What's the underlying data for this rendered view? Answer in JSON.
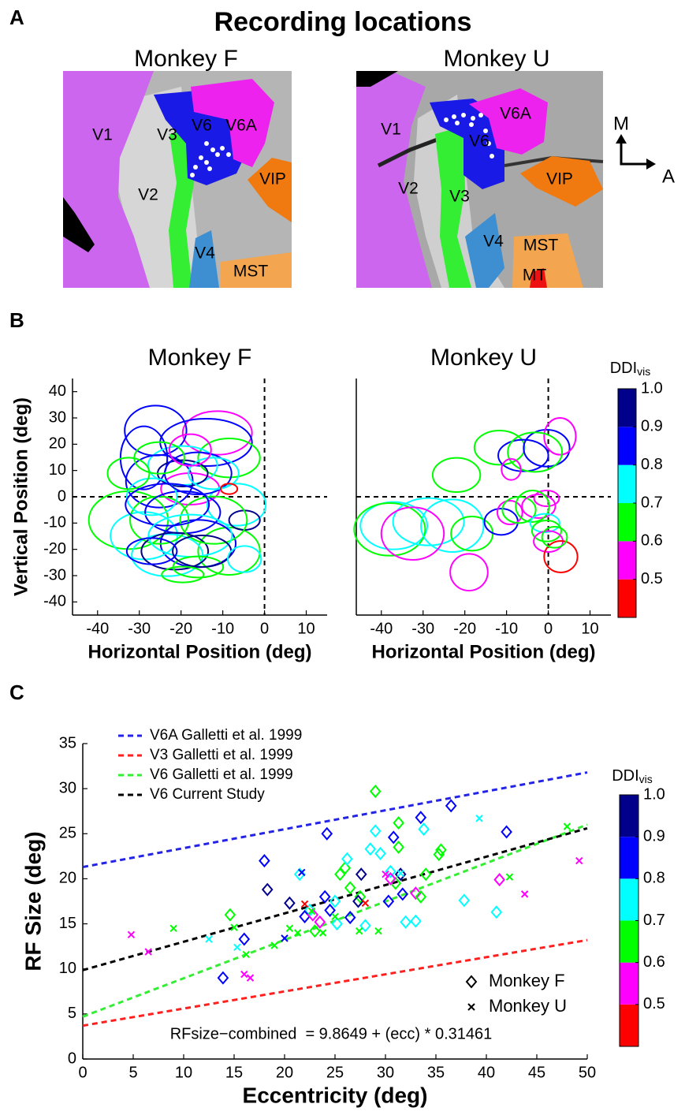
{
  "figure": {
    "panel_labels": [
      "A",
      "B",
      "C"
    ],
    "panel_a": {
      "title": "Recording locations",
      "maps": [
        {
          "title": "Monkey F",
          "areas": [
            "V1",
            "V3",
            "V6",
            "V6A",
            "V2",
            "VIP",
            "V4",
            "MST"
          ]
        },
        {
          "title": "Monkey U",
          "areas": [
            "V1",
            "V6A",
            "V6",
            "V2",
            "V3",
            "VIP",
            "V4",
            "MST",
            "MT"
          ]
        }
      ],
      "compass": [
        "M",
        "A"
      ]
    }
  },
  "chart_data": [
    {
      "type": "ellipse",
      "title": "Monkey F",
      "xlabel": "Horizontal Position (deg)",
      "ylabel": "Vertical Position (deg)",
      "xlim": [
        -46,
        15
      ],
      "ylim": [
        -45,
        45
      ],
      "xticks": [
        -40,
        -30,
        -20,
        -10,
        0,
        10
      ],
      "yticks": [
        -40,
        -30,
        -20,
        -10,
        0,
        10,
        20,
        30,
        40
      ],
      "zero_lines": true,
      "x": [
        -11.3,
        -26.1,
        -14,
        -8.5,
        -19.6,
        -28.9,
        -25.2,
        -17.8,
        -19.6,
        -32.6,
        -8.5,
        -23.3,
        -15.9,
        -28.9,
        -25.2,
        -6.7,
        -4.8,
        -19.6,
        -21.5,
        -12.2,
        -27,
        -15.9,
        -25.2,
        -12.2,
        -23.3,
        -17.8,
        -15.9,
        -15,
        -17.8,
        -32.6,
        -8.5,
        -4.8,
        -27,
        -19.6
      ],
      "y": [
        24.3,
        25.2,
        20.7,
        14.8,
        11.9,
        14.8,
        5.9,
        3,
        8.9,
        -8.9,
        -20.7,
        -22.2,
        -17.8,
        -14.8,
        -8.9,
        -3,
        -8.9,
        -5.9,
        -20.7,
        -8.9,
        0,
        8.9,
        14.8,
        8.9,
        -3,
        -14.8,
        -26.7,
        -20.7,
        17.8,
        8.9,
        3,
        -23.7,
        -20.7,
        -29.6
      ],
      "rx": [
        8.3,
        7.4,
        11,
        7.4,
        8.3,
        5.6,
        8,
        7,
        6,
        9.5,
        7.4,
        8.5,
        9,
        8,
        7,
        7,
        3.7,
        9,
        8,
        8,
        6,
        8,
        6,
        6,
        10,
        10,
        6,
        7,
        5,
        5,
        2,
        4,
        6,
        5
      ],
      "ry": [
        8.3,
        9.5,
        9,
        7.4,
        7.4,
        12,
        10,
        6,
        5,
        11,
        9,
        8,
        9,
        9,
        9,
        8,
        3.7,
        8,
        7,
        9,
        7,
        8,
        6,
        6,
        8,
        8,
        4,
        6,
        6,
        6,
        2,
        5,
        5,
        3
      ],
      "ddi": [
        0.55,
        0.85,
        0.85,
        0.65,
        0.75,
        0.85,
        0.85,
        0.55,
        0.95,
        0.65,
        0.65,
        0.75,
        0.85,
        0.75,
        0.65,
        0.75,
        0.95,
        0.85,
        0.95,
        0.65,
        0.75,
        0.85,
        0.65,
        0.75,
        0.85,
        0.75,
        0.65,
        0.95,
        0.55,
        0.65,
        0.45,
        0.75,
        0.85,
        0.65
      ]
    },
    {
      "type": "ellipse",
      "title": "Monkey U",
      "xlabel": "Horizontal Position (deg)",
      "xlim": [
        -46,
        15
      ],
      "ylim": [
        -45,
        45
      ],
      "xticks": [
        -40,
        -30,
        -20,
        -10,
        0,
        10
      ],
      "zero_lines": true,
      "x": [
        -22,
        -11.7,
        -6,
        -0.4,
        2.8,
        -3.2,
        -8.9,
        -37,
        -38,
        -28.7,
        -23,
        -32.5,
        -18.3,
        -19,
        -11.3,
        -9.2,
        -7,
        -2.3,
        -0.4,
        -3.8,
        -0.8,
        -0.4,
        0,
        3,
        1.5
      ],
      "y": [
        8.3,
        18.7,
        15.7,
        18.5,
        23,
        17,
        10.4,
        -11,
        -12.4,
        -9.5,
        -11,
        -14,
        -14,
        -28.7,
        -9.5,
        -6,
        -5,
        -3.6,
        -0.6,
        -3.6,
        -10,
        -13,
        -17,
        -22.8,
        -15.4
      ],
      "rx": [
        5.7,
        6,
        6,
        5.5,
        3.8,
        6.5,
        2.3,
        8,
        8.5,
        8.5,
        7.5,
        7.5,
        5,
        4.5,
        4,
        3,
        4,
        4,
        3,
        4,
        3.5,
        3.5,
        3.5,
        4,
        3
      ],
      "ry": [
        6.5,
        6.5,
        6,
        7,
        7,
        7.5,
        4,
        9,
        10,
        9,
        10,
        10,
        6.5,
        7,
        5,
        4.5,
        5,
        4.5,
        3,
        6,
        3.5,
        4,
        4,
        6,
        4
      ],
      "ddi": [
        0.65,
        0.65,
        0.85,
        0.85,
        0.55,
        0.65,
        0.55,
        0.75,
        0.65,
        0.75,
        0.75,
        0.55,
        0.65,
        0.55,
        0.85,
        0.55,
        0.65,
        0.55,
        0.55,
        0.65,
        0.75,
        0.65,
        0.55,
        0.45,
        0.65
      ],
      "colorbar": {
        "title": "DDI",
        "title_sub": "vis",
        "lim": [
          0.4,
          1.0
        ],
        "ticks": [
          0.5,
          0.6,
          0.7,
          0.8,
          0.9,
          {
            "value": 1,
            "label": "1.0"
          }
        ],
        "colors": [
          "#ff0000",
          "#ff00ff",
          "#00ff00",
          "#00ffff",
          "#0000ff",
          "#00008b"
        ]
      }
    },
    {
      "type": "scatter",
      "xlabel": "Eccentricity (deg)",
      "ylabel": "RF Size (deg)",
      "xlim": [
        0,
        50
      ],
      "ylim": [
        0,
        35
      ],
      "xticks": [
        0,
        5,
        10,
        15,
        20,
        25,
        30,
        35,
        40,
        45,
        50
      ],
      "yticks": [
        0,
        5,
        10,
        15,
        20,
        25,
        30,
        35
      ],
      "lines": [
        {
          "name": "V6A Galletti et al. 1999",
          "color": "#2424e8",
          "x": [
            0,
            50
          ],
          "y": [
            21.3,
            31.8
          ]
        },
        {
          "name": "V3 Galletti et al. 1999",
          "color": "#ff2020",
          "x": [
            0,
            50
          ],
          "y": [
            3.7,
            13.2
          ]
        },
        {
          "name": "V6 Galletti et al. 1999",
          "color": "#33ee33",
          "x": [
            0,
            50
          ],
          "y": [
            4.7,
            26
          ]
        },
        {
          "name": "V6 Current Study",
          "color": "#000000",
          "x": [
            0,
            50
          ],
          "y": [
            9.86,
            25.6
          ]
        }
      ],
      "series": [
        {
          "name": "Monkey F",
          "marker": "diamond",
          "x": [
            13.9,
            16,
            14.6,
            18,
            18.3,
            20.5,
            21.5,
            22.5,
            22,
            23,
            23.5,
            24,
            24.2,
            24.5,
            25,
            25.2,
            25.5,
            26,
            26.2,
            26.5,
            26.5,
            27.5,
            27.6,
            28,
            27.3,
            28.5,
            29,
            29,
            29.5,
            30.3,
            30.5,
            30.8,
            31,
            31.3,
            31.5,
            31.7,
            31.3,
            32,
            33,
            33.5,
            33.8,
            34,
            33,
            33.5,
            35.5,
            35.3,
            36.5,
            37.8,
            41,
            41.3,
            42,
            30.5,
            22.8
          ],
          "y": [
            9,
            13.3,
            16,
            22,
            18.8,
            17.3,
            20.5,
            16.5,
            15.8,
            14.2,
            15.2,
            18,
            25,
            16.5,
            17.5,
            15,
            20.5,
            21.2,
            22.2,
            19,
            15.7,
            18,
            20.5,
            14.8,
            17.5,
            23.3,
            29.7,
            25.3,
            22.8,
            17.5,
            20.8,
            24.6,
            19.5,
            23.5,
            20.5,
            18.3,
            26.2,
            15.2,
            15.3,
            26.8,
            25.5,
            20.5,
            18.4,
            18,
            23.2,
            22.7,
            28.1,
            17.6,
            16.3,
            19.9,
            25.2,
            20,
            16
          ],
          "ddi": [
            0.85,
            0.85,
            0.65,
            0.85,
            0.95,
            0.95,
            0.75,
            0.75,
            0.85,
            0.65,
            0.55,
            0.85,
            0.85,
            0.85,
            0.75,
            0.75,
            0.65,
            0.65,
            0.75,
            0.65,
            0.85,
            0.65,
            0.95,
            0.75,
            0.95,
            0.75,
            0.65,
            0.75,
            0.75,
            0.85,
            0.75,
            0.85,
            0.65,
            0.65,
            0.95,
            0.85,
            0.65,
            0.75,
            0.75,
            0.85,
            0.75,
            0.65,
            0.55,
            0.65,
            0.65,
            0.65,
            0.85,
            0.75,
            0.75,
            0.55,
            0.85,
            0.55,
            0.55
          ]
        },
        {
          "name": "Monkey U",
          "marker": "cross",
          "x": [
            4.8,
            6.5,
            9,
            12.5,
            15,
            15.3,
            16,
            16.6,
            16.2,
            19,
            20,
            20.5,
            21.3,
            21.7,
            22,
            22.7,
            23.8,
            25,
            27.4,
            28,
            29.3,
            30,
            31.5,
            39.3,
            42.3,
            43.8,
            48,
            49.2
          ],
          "y": [
            13.8,
            11.9,
            14.5,
            13.3,
            14.6,
            12.4,
            9.4,
            9,
            11.6,
            12.6,
            13.4,
            14.5,
            14,
            20.7,
            17.2,
            16.4,
            14,
            15.8,
            14.2,
            17.3,
            14.2,
            20.5,
            20.6,
            26.7,
            20.2,
            18.3,
            25.8,
            22
          ],
          "ddi": [
            0.55,
            0.55,
            0.65,
            0.75,
            0.65,
            0.75,
            0.55,
            0.55,
            0.65,
            0.65,
            0.85,
            0.65,
            0.65,
            0.85,
            0.45,
            0.65,
            0.65,
            0.65,
            0.65,
            0.45,
            0.65,
            0.55,
            0.75,
            0.75,
            0.65,
            0.55,
            0.65,
            0.55
          ]
        }
      ],
      "annotation": "RFsize−combined  = 9.8649 + (ecc) * 0.31461",
      "colorbar": {
        "title": "DDI",
        "title_sub": "vis",
        "lim": [
          0.4,
          1.0
        ],
        "ticks": [
          0.5,
          0.6,
          0.7,
          0.8,
          0.9,
          {
            "value": 1,
            "label": "1.0"
          }
        ],
        "colors": [
          "#ff0000",
          "#ff00ff",
          "#00ff00",
          "#00ffff",
          "#0000ff",
          "#00008b"
        ]
      }
    }
  ]
}
